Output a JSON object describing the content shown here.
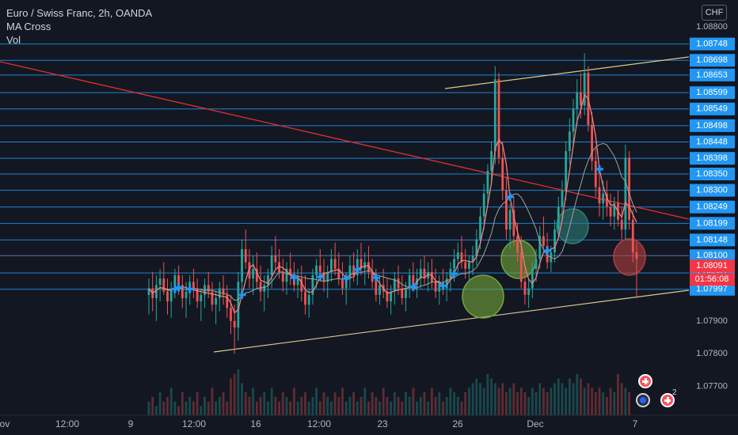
{
  "legend": {
    "title": "Euro / Swiss Franc, 2h, OANDA",
    "indicator1": "MA Cross",
    "indicator2": "Vol"
  },
  "currency": "CHF",
  "badge_count": "2",
  "colors": {
    "background": "#131722",
    "grid_line": "#2196f3",
    "label_bg": "#2196f3",
    "up": "#26a69a",
    "down": "#ef5350",
    "trend_red": "#e03030",
    "channel": "#d8c890",
    "ma_fast": "#f08080",
    "ma_slow": "#9aa6a0",
    "cross": "#2196f3",
    "price_label": "#f23645",
    "ellipse_green": "#74a63c",
    "ellipse_teal": "#2e7d7a",
    "ellipse_red": "#b04040"
  },
  "chart_data": {
    "type": "candlestick",
    "title": "Euro / Swiss Franc, 2h, OANDA",
    "indicators": [
      "MA Cross",
      "Vol"
    ],
    "ylim": [
      1.0766,
      1.0881
    ],
    "y_ticks": [
      "1.08800",
      "1.07900",
      "1.07800",
      "1.07700"
    ],
    "x_ticks": [
      "ov",
      "12:00",
      "9",
      "12:00",
      "16",
      "12:00",
      "23",
      "26",
      "Dec",
      "7"
    ],
    "horizontal_levels": [
      "1.08748",
      "1.08698",
      "1.08653",
      "1.08599",
      "1.08549",
      "1.08498",
      "1.08448",
      "1.08398",
      "1.08350",
      "1.08300",
      "1.08249",
      "1.08199",
      "1.08148",
      "1.08100",
      "1.08047",
      "1.07997"
    ],
    "current_price": "1.08091",
    "countdown": "01:56:08",
    "last_close_level": 1.081,
    "candles_ohlc": [
      [
        1.0798,
        1.0803,
        1.0792,
        1.08
      ],
      [
        1.08,
        1.0805,
        1.0793,
        1.0797
      ],
      [
        1.0797,
        1.0804,
        1.079,
        1.0801
      ],
      [
        1.0801,
        1.0806,
        1.0796,
        1.0803
      ],
      [
        1.0803,
        1.0808,
        1.0798,
        1.0799
      ],
      [
        1.0799,
        1.0803,
        1.0792,
        1.0796
      ],
      [
        1.0796,
        1.0802,
        1.0791,
        1.08
      ],
      [
        1.08,
        1.0806,
        1.0797,
        1.0804
      ],
      [
        1.0804,
        1.0807,
        1.0798,
        1.0801
      ],
      [
        1.0801,
        1.0804,
        1.0794,
        1.0797
      ],
      [
        1.0797,
        1.0802,
        1.0791,
        1.0799
      ],
      [
        1.0799,
        1.0804,
        1.0795,
        1.0802
      ],
      [
        1.0802,
        1.0806,
        1.0797,
        1.08
      ],
      [
        1.08,
        1.0803,
        1.0794,
        1.0796
      ],
      [
        1.0796,
        1.08,
        1.079,
        1.0798
      ],
      [
        1.0798,
        1.0803,
        1.0794,
        1.0801
      ],
      [
        1.0801,
        1.0805,
        1.0797,
        1.0799
      ],
      [
        1.0799,
        1.0802,
        1.0793,
        1.0795
      ],
      [
        1.0795,
        1.0799,
        1.0789,
        1.0797
      ],
      [
        1.0797,
        1.0802,
        1.0793,
        1.08
      ],
      [
        1.08,
        1.0804,
        1.0795,
        1.0798
      ],
      [
        1.0798,
        1.0801,
        1.0791,
        1.0794
      ],
      [
        1.0794,
        1.0798,
        1.0786,
        1.079
      ],
      [
        1.079,
        1.0795,
        1.078,
        1.0788
      ],
      [
        1.0788,
        1.0805,
        1.0784,
        1.0802
      ],
      [
        1.0802,
        1.0815,
        1.0799,
        1.0812
      ],
      [
        1.0812,
        1.0818,
        1.0806,
        1.0808
      ],
      [
        1.0808,
        1.0812,
        1.08,
        1.0803
      ],
      [
        1.0803,
        1.081,
        1.0798,
        1.0806
      ],
      [
        1.0806,
        1.0811,
        1.08,
        1.0802
      ],
      [
        1.0802,
        1.0807,
        1.0796,
        1.0799
      ],
      [
        1.0799,
        1.0804,
        1.0793,
        1.0801
      ],
      [
        1.0801,
        1.0806,
        1.0797,
        1.0804
      ],
      [
        1.0804,
        1.0813,
        1.08,
        1.081
      ],
      [
        1.081,
        1.0816,
        1.0806,
        1.0808
      ],
      [
        1.0808,
        1.0812,
        1.0803,
        1.0805
      ],
      [
        1.0805,
        1.0809,
        1.0799,
        1.0802
      ],
      [
        1.0802,
        1.0808,
        1.0798,
        1.0806
      ],
      [
        1.0806,
        1.0811,
        1.0801,
        1.0804
      ],
      [
        1.0804,
        1.0808,
        1.0799,
        1.0801
      ],
      [
        1.0801,
        1.0806,
        1.0797,
        1.0803
      ],
      [
        1.0803,
        1.0807,
        1.0796,
        1.0799
      ],
      [
        1.0799,
        1.0804,
        1.0792,
        1.0795
      ],
      [
        1.0795,
        1.08,
        1.0791,
        1.0798
      ],
      [
        1.0798,
        1.0806,
        1.0795,
        1.0804
      ],
      [
        1.0804,
        1.0809,
        1.08,
        1.0807
      ],
      [
        1.0807,
        1.0812,
        1.0802,
        1.0805
      ],
      [
        1.0805,
        1.0809,
        1.0799,
        1.0802
      ],
      [
        1.0802,
        1.0807,
        1.0797,
        1.0805
      ],
      [
        1.0805,
        1.0812,
        1.0802,
        1.0809
      ],
      [
        1.0809,
        1.0814,
        1.0804,
        1.0806
      ],
      [
        1.0806,
        1.0811,
        1.0801,
        1.0803
      ],
      [
        1.0803,
        1.0808,
        1.0798,
        1.08
      ],
      [
        1.08,
        1.0805,
        1.0795,
        1.0803
      ],
      [
        1.0803,
        1.081,
        1.08,
        1.0807
      ],
      [
        1.0807,
        1.0811,
        1.0802,
        1.0804
      ],
      [
        1.0804,
        1.0812,
        1.0801,
        1.0809
      ],
      [
        1.0809,
        1.0814,
        1.0804,
        1.0806
      ],
      [
        1.0806,
        1.0811,
        1.0801,
        1.0808
      ],
      [
        1.0808,
        1.0813,
        1.0803,
        1.0805
      ],
      [
        1.0805,
        1.0809,
        1.08,
        1.0802
      ],
      [
        1.0802,
        1.0806,
        1.0796,
        1.0798
      ],
      [
        1.0798,
        1.0804,
        1.0795,
        1.0801
      ],
      [
        1.0801,
        1.0806,
        1.0797,
        1.0799
      ],
      [
        1.0799,
        1.0803,
        1.0794,
        1.0796
      ],
      [
        1.0796,
        1.0801,
        1.0792,
        1.0799
      ],
      [
        1.0799,
        1.0805,
        1.0795,
        1.0803
      ],
      [
        1.0803,
        1.0807,
        1.0798,
        1.08
      ],
      [
        1.08,
        1.0804,
        1.0795,
        1.0797
      ],
      [
        1.0797,
        1.0802,
        1.0793,
        1.08
      ],
      [
        1.08,
        1.0806,
        1.0797,
        1.0804
      ],
      [
        1.0804,
        1.0808,
        1.0799,
        1.0801
      ],
      [
        1.0801,
        1.0806,
        1.0797,
        1.0803
      ],
      [
        1.0803,
        1.0809,
        1.08,
        1.0806
      ],
      [
        1.0806,
        1.081,
        1.0801,
        1.0803
      ],
      [
        1.0803,
        1.0808,
        1.0799,
        1.0805
      ],
      [
        1.0805,
        1.0809,
        1.08,
        1.0802
      ],
      [
        1.0802,
        1.0806,
        1.0797,
        1.0799
      ],
      [
        1.0799,
        1.0804,
        1.0795,
        1.0802
      ],
      [
        1.0802,
        1.0806,
        1.0798,
        1.08
      ],
      [
        1.08,
        1.0805,
        1.0796,
        1.0803
      ],
      [
        1.0803,
        1.0808,
        1.0799,
        1.0806
      ],
      [
        1.0806,
        1.0812,
        1.0802,
        1.0809
      ],
      [
        1.0809,
        1.0814,
        1.0805,
        1.0811
      ],
      [
        1.0811,
        1.0816,
        1.0806,
        1.0808
      ],
      [
        1.0808,
        1.0812,
        1.0803,
        1.0806
      ],
      [
        1.0806,
        1.081,
        1.0802,
        1.0808
      ],
      [
        1.0808,
        1.0813,
        1.0804,
        1.081
      ],
      [
        1.081,
        1.0818,
        1.0807,
        1.0815
      ],
      [
        1.0815,
        1.0825,
        1.0812,
        1.0822
      ],
      [
        1.0822,
        1.0832,
        1.0818,
        1.0829
      ],
      [
        1.0829,
        1.0838,
        1.0826,
        1.0836
      ],
      [
        1.0836,
        1.0845,
        1.0832,
        1.0842
      ],
      [
        1.0842,
        1.0868,
        1.0838,
        1.0864
      ],
      [
        1.0864,
        1.0866,
        1.0838,
        1.084
      ],
      [
        1.084,
        1.0845,
        1.0827,
        1.083
      ],
      [
        1.083,
        1.0834,
        1.0815,
        1.0818
      ],
      [
        1.0818,
        1.0826,
        1.0812,
        1.0824
      ],
      [
        1.0824,
        1.0828,
        1.0813,
        1.0816
      ],
      [
        1.0816,
        1.082,
        1.0808,
        1.0811
      ],
      [
        1.0811,
        1.0816,
        1.08,
        1.0802
      ],
      [
        1.0802,
        1.0806,
        1.0795,
        1.0798
      ],
      [
        1.0798,
        1.0803,
        1.0794,
        1.08
      ],
      [
        1.08,
        1.0808,
        1.0797,
        1.0806
      ],
      [
        1.0806,
        1.0812,
        1.0802,
        1.0809
      ],
      [
        1.0809,
        1.0819,
        1.0806,
        1.0816
      ],
      [
        1.0816,
        1.0822,
        1.0811,
        1.0813
      ],
      [
        1.0813,
        1.0817,
        1.0806,
        1.0808
      ],
      [
        1.0808,
        1.0813,
        1.0805,
        1.0811
      ],
      [
        1.0811,
        1.0821,
        1.0808,
        1.0818
      ],
      [
        1.0818,
        1.0828,
        1.0815,
        1.0825
      ],
      [
        1.0825,
        1.0833,
        1.0821,
        1.083
      ],
      [
        1.083,
        1.0845,
        1.0827,
        1.0842
      ],
      [
        1.0842,
        1.0852,
        1.0838,
        1.0848
      ],
      [
        1.0848,
        1.0858,
        1.0844,
        1.0855
      ],
      [
        1.0855,
        1.0864,
        1.085,
        1.086
      ],
      [
        1.086,
        1.0866,
        1.0852,
        1.0856
      ],
      [
        1.0856,
        1.0872,
        1.0853,
        1.0866
      ],
      [
        1.0866,
        1.0868,
        1.0848,
        1.085
      ],
      [
        1.085,
        1.0854,
        1.0836,
        1.0839
      ],
      [
        1.0839,
        1.0843,
        1.0828,
        1.0831
      ],
      [
        1.0831,
        1.0836,
        1.0822,
        1.0826
      ],
      [
        1.0826,
        1.0833,
        1.0821,
        1.0829
      ],
      [
        1.0829,
        1.0833,
        1.0822,
        1.0825
      ],
      [
        1.0825,
        1.0829,
        1.0819,
        1.0822
      ],
      [
        1.0822,
        1.0828,
        1.0818,
        1.0826
      ],
      [
        1.0826,
        1.083,
        1.0819,
        1.0821
      ],
      [
        1.0821,
        1.0825,
        1.0815,
        1.0818
      ],
      [
        1.0818,
        1.0844,
        1.0815,
        1.084
      ],
      [
        1.084,
        1.0842,
        1.0818,
        1.0821
      ],
      [
        1.0821,
        1.0824,
        1.0808,
        1.0811
      ],
      [
        1.0811,
        1.0814,
        1.0797,
        1.0809
      ]
    ],
    "volume_relative": [
      0.3,
      0.4,
      0.2,
      0.5,
      0.3,
      0.4,
      0.6,
      0.3,
      0.2,
      0.5,
      0.3,
      0.4,
      0.3,
      0.5,
      0.2,
      0.4,
      0.3,
      0.6,
      0.3,
      0.4,
      0.5,
      0.3,
      0.8,
      0.9,
      1.0,
      0.7,
      0.5,
      0.4,
      0.6,
      0.3,
      0.4,
      0.5,
      0.3,
      0.6,
      0.4,
      0.3,
      0.5,
      0.4,
      0.3,
      0.6,
      0.3,
      0.4,
      0.5,
      0.3,
      0.4,
      0.6,
      0.3,
      0.5,
      0.4,
      0.3,
      0.5,
      0.4,
      0.6,
      0.3,
      0.4,
      0.5,
      0.3,
      0.4,
      0.6,
      0.3,
      0.5,
      0.4,
      0.3,
      0.6,
      0.4,
      0.3,
      0.5,
      0.4,
      0.3,
      0.5,
      0.4,
      0.6,
      0.3,
      0.4,
      0.5,
      0.3,
      0.6,
      0.4,
      0.5,
      0.3,
      0.4,
      0.6,
      0.5,
      0.4,
      0.3,
      0.5,
      0.6,
      0.7,
      0.8,
      0.7,
      0.6,
      0.9,
      0.8,
      0.7,
      0.6,
      0.7,
      0.5,
      0.6,
      0.7,
      0.5,
      0.6,
      0.5,
      0.4,
      0.6,
      0.5,
      0.7,
      0.6,
      0.5,
      0.6,
      0.7,
      0.8,
      0.7,
      0.6,
      0.8,
      0.7,
      0.9,
      0.8,
      0.6,
      0.7,
      0.6,
      0.5,
      0.6,
      0.5,
      0.4,
      0.6,
      0.5,
      0.9,
      0.7,
      0.6,
      0.5
    ]
  }
}
